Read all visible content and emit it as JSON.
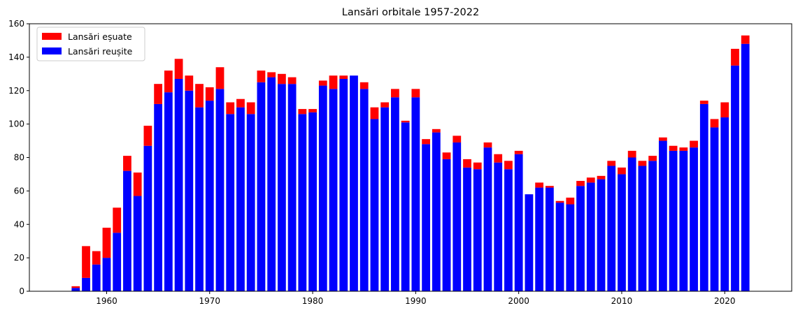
{
  "chart_data": {
    "type": "bar",
    "stacked": true,
    "title": "Lansări orbitale 1957-2022",
    "xlabel": "",
    "ylabel": "",
    "xlim": [
      1952.5,
      2026.5
    ],
    "ylim": [
      0,
      160
    ],
    "xticks": [
      1960,
      1970,
      1980,
      1990,
      2000,
      2010,
      2020
    ],
    "yticks": [
      0,
      20,
      40,
      60,
      80,
      100,
      120,
      140,
      160
    ],
    "legend_position": "top-left",
    "grid": false,
    "series": [
      {
        "name": "Lansări reușite",
        "color": "#0000ff",
        "x": [
          1957,
          1958,
          1959,
          1960,
          1961,
          1962,
          1963,
          1964,
          1965,
          1966,
          1967,
          1968,
          1969,
          1970,
          1971,
          1972,
          1973,
          1974,
          1975,
          1976,
          1977,
          1978,
          1979,
          1980,
          1981,
          1982,
          1983,
          1984,
          1985,
          1986,
          1987,
          1988,
          1989,
          1990,
          1991,
          1992,
          1993,
          1994,
          1995,
          1996,
          1997,
          1998,
          1999,
          2000,
          2001,
          2002,
          2003,
          2004,
          2005,
          2006,
          2007,
          2008,
          2009,
          2010,
          2011,
          2012,
          2013,
          2014,
          2015,
          2016,
          2017,
          2018,
          2019,
          2020,
          2021,
          2022
        ],
        "values": [
          2,
          8,
          16,
          20,
          35,
          72,
          57,
          87,
          112,
          119,
          127,
          120,
          110,
          114,
          121,
          106,
          110,
          106,
          125,
          128,
          124,
          124,
          106,
          107,
          123,
          121,
          127,
          129,
          121,
          103,
          110,
          116,
          101,
          116,
          88,
          95,
          79,
          89,
          74,
          73,
          86,
          77,
          73,
          82,
          58,
          62,
          62,
          53,
          52,
          63,
          65,
          67,
          75,
          70,
          80,
          75,
          78,
          90,
          84,
          84,
          86,
          112,
          98,
          104,
          135,
          148
        ]
      },
      {
        "name": "Lansări eșuate",
        "color": "#ff0000",
        "x": [
          1957,
          1958,
          1959,
          1960,
          1961,
          1962,
          1963,
          1964,
          1965,
          1966,
          1967,
          1968,
          1969,
          1970,
          1971,
          1972,
          1973,
          1974,
          1975,
          1976,
          1977,
          1978,
          1979,
          1980,
          1981,
          1982,
          1983,
          1984,
          1985,
          1986,
          1987,
          1988,
          1989,
          1990,
          1991,
          1992,
          1993,
          1994,
          1995,
          1996,
          1997,
          1998,
          1999,
          2000,
          2001,
          2002,
          2003,
          2004,
          2005,
          2006,
          2007,
          2008,
          2009,
          2010,
          2011,
          2012,
          2013,
          2014,
          2015,
          2016,
          2017,
          2018,
          2019,
          2020,
          2021,
          2022
        ],
        "values": [
          1,
          19,
          8,
          18,
          15,
          9,
          14,
          12,
          12,
          13,
          12,
          9,
          14,
          8,
          13,
          7,
          5,
          7,
          7,
          3,
          6,
          4,
          3,
          2,
          3,
          8,
          2,
          0,
          4,
          7,
          3,
          5,
          1,
          5,
          3,
          2,
          4,
          4,
          5,
          4,
          3,
          5,
          5,
          2,
          0,
          3,
          1,
          1,
          4,
          3,
          3,
          2,
          3,
          4,
          4,
          3,
          3,
          2,
          3,
          2,
          4,
          2,
          5,
          9,
          10,
          5
        ]
      }
    ]
  }
}
